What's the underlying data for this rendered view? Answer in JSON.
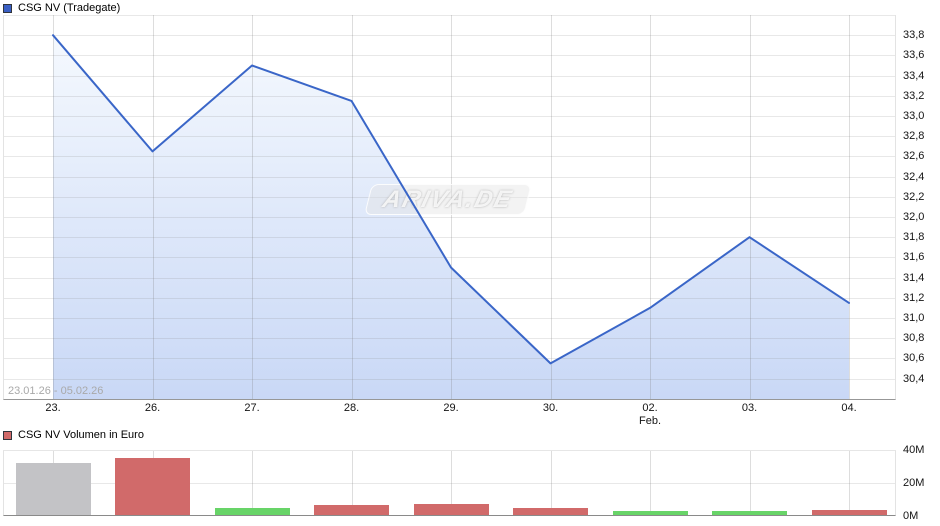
{
  "chart_data": [
    {
      "type": "area",
      "title": "CSG NV (Tradegate)",
      "categories": [
        "23.",
        "26.",
        "27.",
        "28.",
        "29.",
        "30.",
        "02.",
        "03.",
        "04."
      ],
      "x_sublabels": [
        {
          "index": 6,
          "label": "Feb."
        }
      ],
      "values": [
        33.8,
        32.65,
        33.5,
        33.15,
        31.5,
        30.55,
        31.1,
        31.8,
        31.15
      ],
      "unit": "EUR",
      "ylim": [
        30.2,
        34.0
      ],
      "yticks": [
        "33,8",
        "33,6",
        "33,4",
        "33,2",
        "33,0",
        "32,8",
        "32,6",
        "32,4",
        "32,2",
        "32,0",
        "31,8",
        "31,6",
        "31,4",
        "31,2",
        "31,0",
        "30,8",
        "30,6",
        "30,4"
      ],
      "yaxis_position": "right",
      "grid": true,
      "legend_position": "top-left",
      "line_color": "#3a66c8",
      "fill_gradient": [
        "#f5f9fe",
        "#c9d8f6"
      ],
      "legend_swatch_color": "#3a5fc4",
      "annotations": {
        "range_label": "23.01.26 - 05.02.26",
        "watermark": "ARIVA.DE"
      }
    },
    {
      "type": "bar",
      "title": "CSG NV Volumen in Euro",
      "categories": [
        "23.",
        "26.",
        "27.",
        "28.",
        "29.",
        "30.",
        "02.",
        "03.",
        "04."
      ],
      "values": [
        31.5,
        34.5,
        4.2,
        6.1,
        6.7,
        4.2,
        2.4,
        2.4,
        3.0
      ],
      "unit": "millions EUR",
      "ylim": [
        0,
        40
      ],
      "yticks": [
        "40M",
        "20M",
        "0M"
      ],
      "yaxis_position": "right",
      "grid": true,
      "bar_colors": [
        "gray",
        "red",
        "green",
        "red",
        "red",
        "red",
        "green",
        "green",
        "red"
      ],
      "color_map": {
        "gray": "#c3c3c6",
        "red": "#d16a6a",
        "green": "#68d468"
      },
      "legend_swatch_color": "#d16a6a"
    }
  ]
}
